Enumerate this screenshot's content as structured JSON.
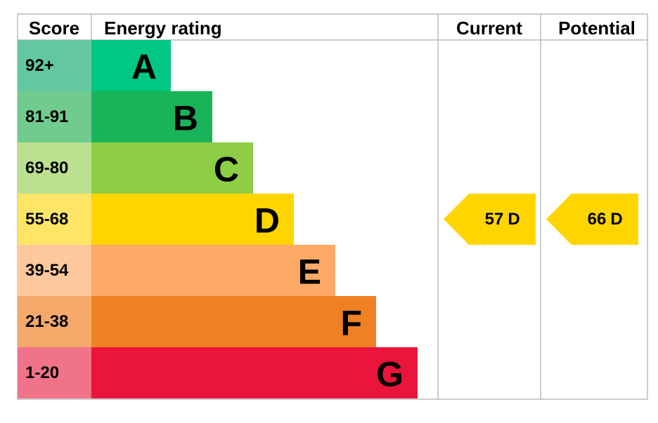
{
  "header": {
    "score": "Score",
    "rating": "Energy rating",
    "current": "Current",
    "potential": "Potential"
  },
  "bands": [
    {
      "score": "92+",
      "letter": "A"
    },
    {
      "score": "81-91",
      "letter": "B"
    },
    {
      "score": "69-80",
      "letter": "C"
    },
    {
      "score": "55-68",
      "letter": "D"
    },
    {
      "score": "39-54",
      "letter": "E"
    },
    {
      "score": "21-38",
      "letter": "F"
    },
    {
      "score": "1-20",
      "letter": "G"
    }
  ],
  "current": {
    "score": "57",
    "letter": "D"
  },
  "potential": {
    "score": "66",
    "letter": "D"
  }
}
